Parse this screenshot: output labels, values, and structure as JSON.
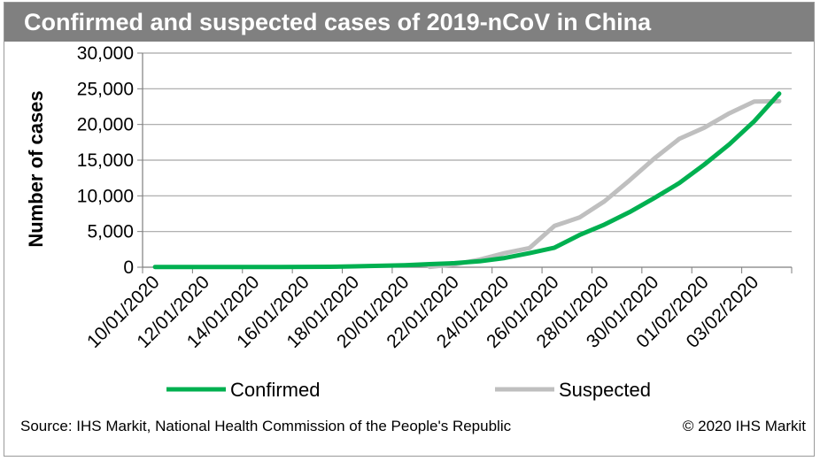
{
  "title": "Confirmed and suspected cases of 2019-nCoV in China",
  "footer": {
    "source": "Source: IHS Markit, National Health Commission of the People's Republic",
    "copyright": "© 2020 IHS Markit"
  },
  "colors": {
    "confirmed": "#00b050",
    "suspected": "#bfbfbf",
    "title_bg": "#808080",
    "grid": "#a6a6a6"
  },
  "chart_data": {
    "type": "line",
    "title": "Confirmed and suspected cases of 2019-nCoV in China",
    "xlabel": "",
    "ylabel": "Number of cases",
    "ylim": [
      0,
      30000
    ],
    "yticks": [
      "0",
      "5,000",
      "10,000",
      "15,000",
      "20,000",
      "25,000",
      "30,000"
    ],
    "grid": true,
    "legend": "bottom",
    "x": [
      "10/01/2020",
      "11/01/2020",
      "12/01/2020",
      "13/01/2020",
      "14/01/2020",
      "15/01/2020",
      "16/01/2020",
      "17/01/2020",
      "18/01/2020",
      "19/01/2020",
      "20/01/2020",
      "21/01/2020",
      "22/01/2020",
      "23/01/2020",
      "24/01/2020",
      "25/01/2020",
      "26/01/2020",
      "27/01/2020",
      "28/01/2020",
      "29/01/2020",
      "30/01/2020",
      "31/01/2020",
      "01/02/2020",
      "02/02/2020",
      "03/02/2020",
      "04/02/2020"
    ],
    "xtick_labels": [
      "10/01/2020",
      "12/01/2020",
      "14/01/2020",
      "16/01/2020",
      "18/01/2020",
      "20/01/2020",
      "22/01/2020",
      "24/01/2020",
      "26/01/2020",
      "28/01/2020",
      "30/01/2020",
      "01/02/2020",
      "03/02/2020"
    ],
    "series": [
      {
        "name": "Confirmed",
        "values": [
          41,
          41,
          41,
          41,
          41,
          41,
          45,
          62,
          121,
          198,
          291,
          440,
          571,
          830,
          1287,
          1975,
          2744,
          4515,
          5974,
          7711,
          9692,
          11791,
          14380,
          17205,
          20438,
          24324
        ]
      },
      {
        "name": "Suspected",
        "values": [
          null,
          null,
          null,
          null,
          null,
          null,
          null,
          null,
          null,
          null,
          null,
          37,
          393,
          1072,
          1965,
          2684,
          5794,
          6973,
          9239,
          12167,
          15238,
          17988,
          19544,
          21558,
          23214,
          23260
        ]
      }
    ]
  }
}
